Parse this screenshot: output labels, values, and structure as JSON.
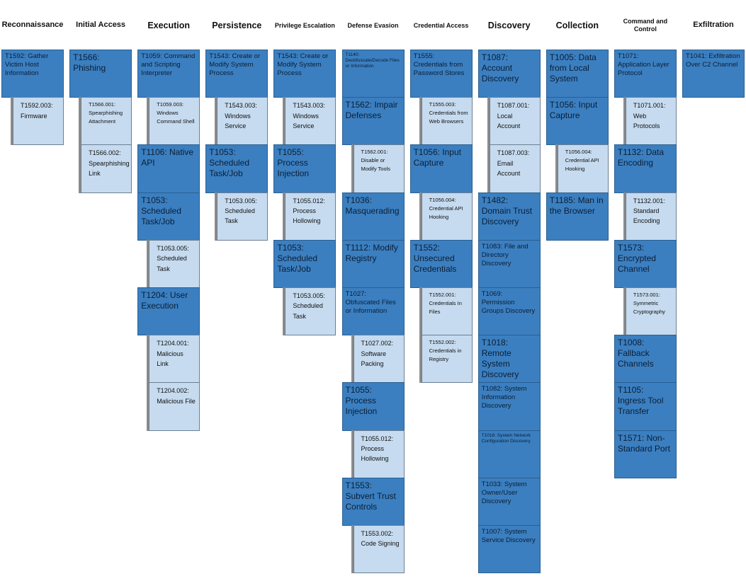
{
  "columns": [
    {
      "header": "Reconnaissance",
      "techniques": [
        {
          "label": "T1592: Gather Victim Host Information",
          "subtechniques": [
            "T1592.003: Firmware"
          ]
        }
      ]
    },
    {
      "header": "Initial Access",
      "techniques": [
        {
          "label": "T1566: Phishing",
          "subtechniques": [
            "T1566.001: Spearphishing Attachment",
            "T1566.002: Spearphishing Link"
          ]
        }
      ]
    },
    {
      "header": "Execution",
      "techniques": [
        {
          "label": "T1059: Command and Scripting Interpreter",
          "subtechniques": [
            "T1059.003: Windows Command Shell"
          ]
        },
        {
          "label": "T1106: Native API",
          "subtechniques": []
        },
        {
          "label": "T1053: Scheduled Task/Job",
          "subtechniques": [
            "T1053.005: Scheduled Task"
          ]
        },
        {
          "label": "T1204: User Execution",
          "subtechniques": [
            "T1204.001: Malicious Link",
            "T1204.002: Malicious File"
          ]
        }
      ]
    },
    {
      "header": "Persistence",
      "techniques": [
        {
          "label": "T1543: Create or Modify System Process",
          "subtechniques": [
            "T1543.003: Windows Service"
          ]
        },
        {
          "label": "T1053: Scheduled Task/Job",
          "subtechniques": [
            "T1053.005: Scheduled Task"
          ]
        }
      ]
    },
    {
      "header": "Privilege Escalation",
      "techniques": [
        {
          "label": "T1543: Create or Modify System Process",
          "subtechniques": [
            "T1543.003: Windows Service"
          ]
        },
        {
          "label": "T1055: Process Injection",
          "subtechniques": [
            "T1055.012: Process Hollowing"
          ]
        },
        {
          "label": "T1053: Scheduled Task/Job",
          "subtechniques": [
            "T1053.005: Scheduled Task"
          ]
        }
      ]
    },
    {
      "header": "Defense Evasion",
      "techniques": [
        {
          "label": "T1140: Deobfuscate/Decode Files or Information",
          "subtechniques": []
        },
        {
          "label": "T1562: Impair Defenses",
          "subtechniques": [
            "T1562.001: Disable or Modify Tools"
          ]
        },
        {
          "label": "T1036: Masquerading",
          "subtechniques": []
        },
        {
          "label": "T1112: Modify Registry",
          "subtechniques": []
        },
        {
          "label": "T1027: Obfuscated Files or Information",
          "subtechniques": [
            "T1027.002: Software Packing"
          ]
        },
        {
          "label": "T1055: Process Injection",
          "subtechniques": [
            "T1055.012: Process Hollowing"
          ]
        },
        {
          "label": "T1553: Subvert Trust Controls",
          "subtechniques": [
            "T1553.002: Code Signing"
          ]
        }
      ]
    },
    {
      "header": "Credential Access",
      "techniques": [
        {
          "label": "T1555: Credentials from Password Stores",
          "subtechniques": [
            "T1555.003: Credentials from Web Browsers"
          ]
        },
        {
          "label": "T1056: Input Capture",
          "subtechniques": [
            "T1056.004: Credential API Hooking"
          ]
        },
        {
          "label": "T1552: Unsecured Credentials",
          "subtechniques": [
            "T1552.001: Credentials In Files",
            "T1552.002: Credentials in Registry"
          ]
        }
      ]
    },
    {
      "header": "Discovery",
      "techniques": [
        {
          "label": "T1087: Account Discovery",
          "subtechniques": [
            "T1087.001: Local Account",
            "T1087.003: Email Account"
          ]
        },
        {
          "label": "T1482: Domain Trust Discovery",
          "subtechniques": []
        },
        {
          "label": "T1083: File and Directory Discovery",
          "subtechniques": []
        },
        {
          "label": "T1069: Permission Groups Discovery",
          "subtechniques": []
        },
        {
          "label": "T1018: Remote System Discovery",
          "subtechniques": []
        },
        {
          "label": "T1082: System Information Discovery",
          "subtechniques": []
        },
        {
          "label": "T1016: System Network Configuration Discovery",
          "subtechniques": []
        },
        {
          "label": "T1033: System Owner/User Discovery",
          "subtechniques": []
        },
        {
          "label": "T1007: System Service Discovery",
          "subtechniques": []
        }
      ]
    },
    {
      "header": "Collection",
      "techniques": [
        {
          "label": "T1005: Data from Local System",
          "subtechniques": []
        },
        {
          "label": "T1056: Input Capture",
          "subtechniques": [
            "T1056.004: Credential API Hooking"
          ]
        },
        {
          "label": "T1185: Man in the Browser",
          "subtechniques": []
        }
      ]
    },
    {
      "header": "Command and Control",
      "techniques": [
        {
          "label": "T1071: Application Layer Protocol",
          "subtechniques": [
            "T1071.001: Web Protocols"
          ]
        },
        {
          "label": "T1132: Data Encoding",
          "subtechniques": [
            "T1132.001: Standard Encoding"
          ]
        },
        {
          "label": "T1573: Encrypted Channel",
          "subtechniques": [
            "T1573.001: Symmetric Cryptography"
          ]
        },
        {
          "label": "T1008: Fallback Channels",
          "subtechniques": []
        },
        {
          "label": "T1105: Ingress Tool Transfer",
          "subtechniques": []
        },
        {
          "label": "T1571: Non-Standard Port",
          "subtechniques": []
        }
      ]
    },
    {
      "header": "Exfiltration",
      "techniques": [
        {
          "label": "T1041: Exfiltration Over C2 Channel",
          "subtechniques": []
        }
      ]
    }
  ]
}
